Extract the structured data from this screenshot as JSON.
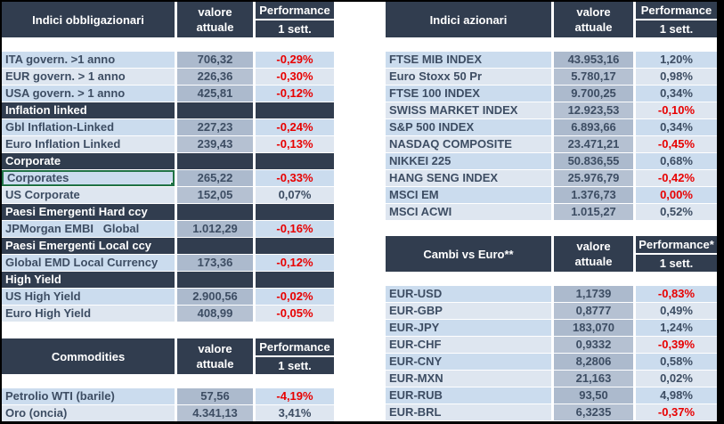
{
  "colors": {
    "header_bg": "#313D4F",
    "row_a_bg": "#CBDCEE",
    "row_b_bg": "#DEE6F0",
    "value_a_bg": "#ACBACD",
    "value_b_bg": "#B5C1D2",
    "text_dark": "#3D4D63",
    "negative": "#E80000",
    "selection_green": "#1F7245"
  },
  "tables": {
    "bonds": {
      "header": {
        "title": "Indici obbligazionari",
        "value_line1": "valore",
        "value_line2": "attuale",
        "perf_line1": "Performance",
        "perf_line2": "1 sett."
      },
      "rows": [
        {
          "label": "ITA govern. >1 anno",
          "value": "706,32",
          "perf": "-0,29%",
          "red": true
        },
        {
          "label": "EUR govern. > 1 anno",
          "value": "226,36",
          "perf": "-0,30%",
          "red": true
        },
        {
          "label": "USA govern. > 1 anno",
          "value": "425,81",
          "perf": "-0,12%",
          "red": true
        },
        {
          "section": "Inflation linked"
        },
        {
          "label": "Gbl Inflation-Linked",
          "value": "227,23",
          "perf": "-0,24%",
          "red": true
        },
        {
          "label": "Euro Inflation Linked",
          "value": "239,43",
          "perf": "-0,13%",
          "red": true
        },
        {
          "section": "Corporate"
        },
        {
          "label": "Corporates",
          "value": "265,22",
          "perf": "-0,33%",
          "red": true,
          "selected": true
        },
        {
          "label": "US Corporate",
          "value": "152,05",
          "perf": "0,07%",
          "red": false
        },
        {
          "section": "Paesi Emergenti Hard ccy"
        },
        {
          "label": "JPMorgan EMBI   Global",
          "value": "1.012,29",
          "perf": "-0,16%",
          "red": true
        },
        {
          "section": "Paesi Emergenti Local ccy"
        },
        {
          "label": "Global EMD Local Currency",
          "value": "173,36",
          "perf": "-0,12%",
          "red": true
        },
        {
          "section": "High Yield"
        },
        {
          "label": "US High Yield",
          "value": "2.900,56",
          "perf": "-0,02%",
          "red": true
        },
        {
          "label": "Euro High Yield",
          "value": "408,99",
          "perf": "-0,05%",
          "red": true
        }
      ]
    },
    "commodities": {
      "header": {
        "title": "Commodities",
        "value_line1": "valore",
        "value_line2": "attuale",
        "perf_line1": "Performance",
        "perf_line2": "1 sett."
      },
      "rows": [
        {
          "label": "Petrolio WTI (barile)",
          "value": "57,56",
          "perf": "-4,19%",
          "red": true
        },
        {
          "label": "Oro (oncia)",
          "value": "4.341,13",
          "perf": "3,41%",
          "red": false
        }
      ]
    },
    "equities": {
      "header": {
        "title": "Indici azionari",
        "value_line1": "valore",
        "value_line2": "attuale",
        "perf_line1": "Performance",
        "perf_line2": "1 sett."
      },
      "rows": [
        {
          "label": "FTSE MIB INDEX",
          "value": "43.953,16",
          "perf": "1,20%",
          "red": false
        },
        {
          "label": "Euro Stoxx 50 Pr",
          "value": "5.780,17",
          "perf": "0,98%",
          "red": false
        },
        {
          "label": "FTSE 100 INDEX",
          "value": "9.700,25",
          "perf": "0,34%",
          "red": false
        },
        {
          "label": "SWISS MARKET INDEX",
          "value": "12.923,53",
          "perf": "-0,10%",
          "red": true
        },
        {
          "label": "S&P 500 INDEX",
          "value": "6.893,66",
          "perf": "0,34%",
          "red": false
        },
        {
          "label": "NASDAQ COMPOSITE",
          "value": "23.471,21",
          "perf": "-0,45%",
          "red": true
        },
        {
          "label": "NIKKEI 225",
          "value": "50.836,55",
          "perf": "0,68%",
          "red": false
        },
        {
          "label": "HANG SENG INDEX",
          "value": "25.976,79",
          "perf": "-0,42%",
          "red": true
        },
        {
          "label": "MSCI EM",
          "value": "1.376,73",
          "perf": "0,00%",
          "red": true
        },
        {
          "label": "MSCI ACWI",
          "value": "1.015,27",
          "perf": "0,52%",
          "red": false
        }
      ]
    },
    "fx": {
      "header": {
        "title": "Cambi vs Euro**",
        "value_line1": "valore",
        "value_line2": "attuale",
        "perf_line1": "Performance*",
        "perf_line2": "1 sett."
      },
      "rows": [
        {
          "label": "EUR-USD",
          "value": "1,1739",
          "perf": "-0,83%",
          "red": true
        },
        {
          "label": "EUR-GBP",
          "value": "0,8777",
          "perf": "0,49%",
          "red": false
        },
        {
          "label": "EUR-JPY",
          "value": "183,070",
          "perf": "1,24%",
          "red": false
        },
        {
          "label": "EUR-CHF",
          "value": "0,9332",
          "perf": "-0,39%",
          "red": true
        },
        {
          "label": "EUR-CNY",
          "value": "8,2806",
          "perf": "0,58%",
          "red": false
        },
        {
          "label": "EUR-MXN",
          "value": "21,163",
          "perf": "0,02%",
          "red": false
        },
        {
          "label": "EUR-RUB",
          "value": "93,50",
          "perf": "4,98%",
          "red": false
        },
        {
          "label": "EUR-BRL",
          "value": "6,3235",
          "perf": "-0,37%",
          "red": true
        }
      ]
    }
  }
}
